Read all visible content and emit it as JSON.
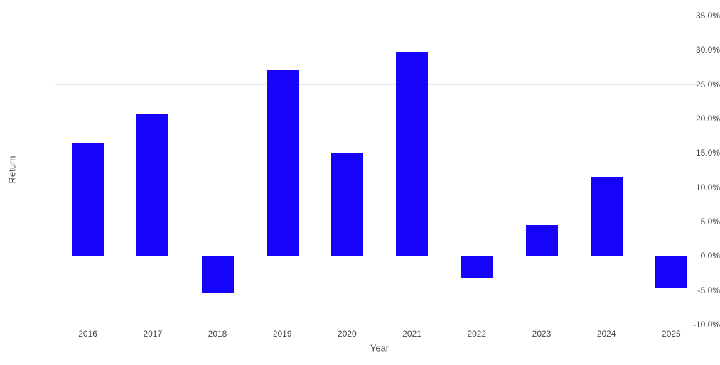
{
  "chart_data": {
    "type": "bar",
    "title": "",
    "xlabel": "Year",
    "ylabel": "Return",
    "unit": "percent",
    "categories": [
      "2016",
      "2017",
      "2018",
      "2019",
      "2020",
      "2021",
      "2022",
      "2023",
      "2024",
      "2025"
    ],
    "values": [
      16.4,
      20.7,
      -5.5,
      27.1,
      14.9,
      29.7,
      -3.3,
      4.5,
      11.5,
      -4.6
    ],
    "ylim": [
      -10,
      35
    ],
    "ytick_step": 5,
    "ytick_values": [
      35,
      30,
      25,
      20,
      15,
      10,
      5,
      0,
      -5,
      -10
    ],
    "ytick_labels": [
      "35.0%",
      "30.0%",
      "25.0%",
      "20.0%",
      "15.0%",
      "10.0%",
      "5.0%",
      "0.0%",
      "-5.0%",
      "-10.0%"
    ],
    "grid": true,
    "legend": "none",
    "bar_color": "#1604f8",
    "gridline_color": "#e5e8ec",
    "baseline_color": "#ccd2da",
    "text_color": "#43464b",
    "background_color": "#ffffff"
  }
}
